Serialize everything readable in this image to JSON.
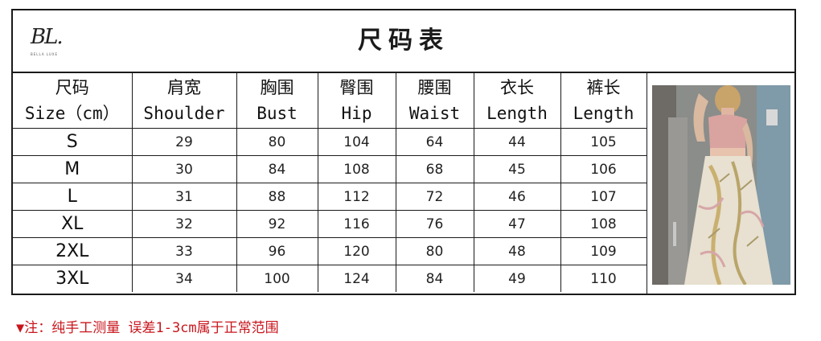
{
  "brand": {
    "logo": "BL.",
    "logo_sub": "BELLA LUXE"
  },
  "title": "尺码表",
  "table": {
    "headers": [
      {
        "cn": "尺码",
        "en": "Size（cm）"
      },
      {
        "cn": "肩宽",
        "en": "Shoulder"
      },
      {
        "cn": "胸围",
        "en": "Bust"
      },
      {
        "cn": "臀围",
        "en": "Hip"
      },
      {
        "cn": "腰围",
        "en": "Waist"
      },
      {
        "cn": "衣长",
        "en": "Length"
      },
      {
        "cn": "裤长",
        "en": "Length"
      }
    ],
    "rows": [
      [
        "S",
        "29",
        "80",
        "104",
        "64",
        "44",
        "105"
      ],
      [
        "M",
        "30",
        "84",
        "108",
        "68",
        "45",
        "106"
      ],
      [
        "L",
        "31",
        "88",
        "112",
        "72",
        "46",
        "107"
      ],
      [
        "XL",
        "32",
        "92",
        "116",
        "76",
        "47",
        "108"
      ],
      [
        "2XL",
        "33",
        "96",
        "120",
        "80",
        "48",
        "109"
      ],
      [
        "3XL",
        "34",
        "100",
        "124",
        "84",
        "49",
        "110"
      ]
    ]
  },
  "note": "▼注：纯手工测量 误差1-3cm属于正常范围",
  "colors": {
    "note": "#c8161d",
    "border": "#1a1a1a",
    "top": "#d9a3a0"
  }
}
